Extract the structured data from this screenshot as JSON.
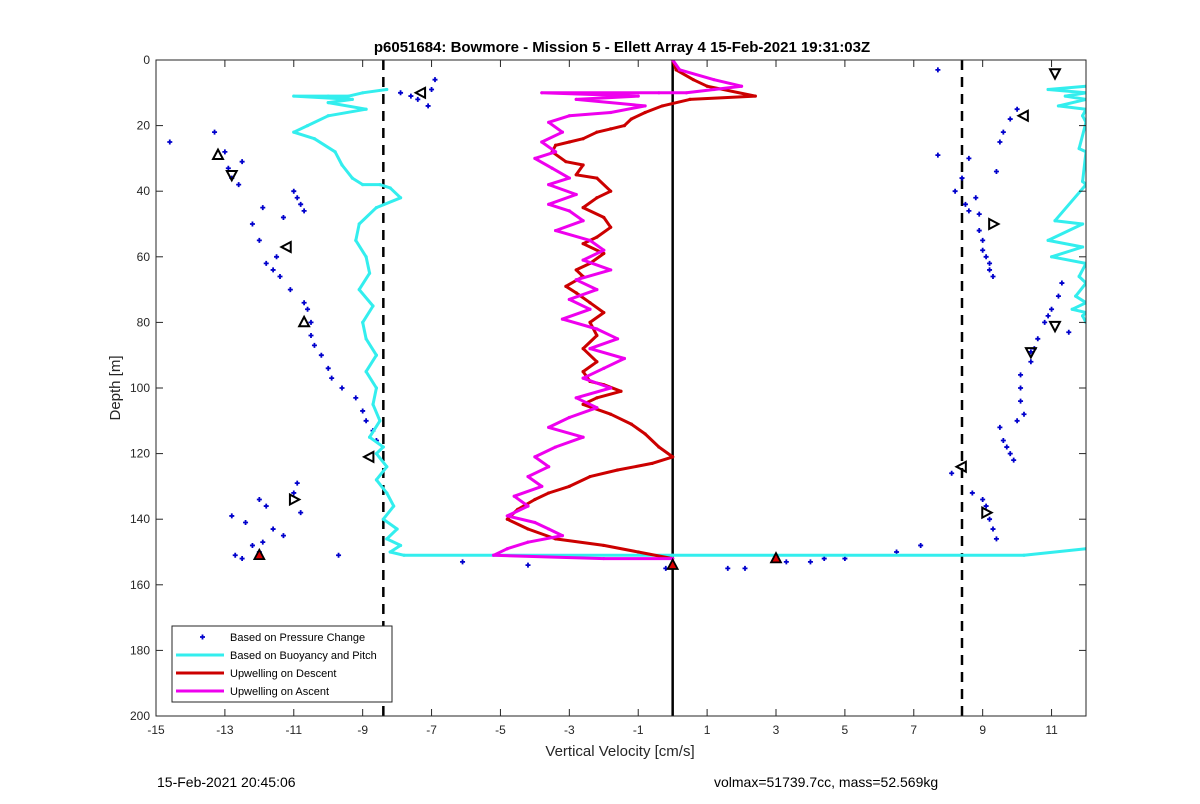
{
  "chart_data": {
    "type": "scatter",
    "title": "p6051684: Bowmore - Mission 5 - Ellett Array 4 15-Feb-2021 19:31:03Z",
    "xlabel": "Vertical Velocity [cm/s]",
    "ylabel": "Depth [m]",
    "xlim": [
      -15,
      12
    ],
    "ylim": [
      0,
      200
    ],
    "y_reversed": true,
    "xticks": [
      -15,
      -13,
      -11,
      -9,
      -7,
      -5,
      -3,
      -1,
      1,
      3,
      5,
      7,
      9,
      11
    ],
    "yticks": [
      0,
      20,
      40,
      60,
      80,
      100,
      120,
      140,
      160,
      180,
      200
    ],
    "grid": false,
    "legend_position": "bottom-left",
    "reference_lines": [
      {
        "x": -8.4,
        "style": "dashed",
        "color": "#000000"
      },
      {
        "x": 0,
        "style": "solid",
        "color": "#000000"
      },
      {
        "x": 8.4,
        "style": "dashed",
        "color": "#000000"
      }
    ],
    "series": [
      {
        "name": "Based on Pressure Change",
        "kind": "points",
        "color": "#0000cc",
        "x": [
          -14.6,
          -13.3,
          -13.0,
          -12.9,
          -12.8,
          -12.6,
          -12.5,
          -12.2,
          -12.0,
          -11.9,
          -11.8,
          -11.6,
          -11.5,
          -11.4,
          -11.3,
          -11.1,
          -11.0,
          -10.9,
          -10.8,
          -10.7,
          -10.7,
          -10.6,
          -10.5,
          -10.5,
          -10.4,
          -10.2,
          -10.0,
          -9.9,
          -9.6,
          -9.2,
          -9.0,
          -8.9,
          -8.7,
          -8.6,
          -7.9,
          -7.6,
          -7.4,
          -7.1,
          -7.0,
          -6.9,
          -9.7,
          -12.8,
          -12.4,
          -11.6,
          -11.3,
          -10.8,
          -11.0,
          -10.9,
          -11.9,
          -12.0,
          -12.2,
          -12.5,
          -12.7,
          -11.8,
          -12.0
        ],
        "y": [
          25,
          22,
          28,
          33,
          36,
          38,
          31,
          50,
          55,
          45,
          62,
          64,
          60,
          66,
          48,
          70,
          40,
          42,
          44,
          46,
          74,
          76,
          80,
          84,
          87,
          90,
          94,
          97,
          100,
          103,
          107,
          110,
          113,
          116,
          10,
          11,
          12,
          14,
          9,
          6,
          151,
          139,
          141,
          143,
          145,
          138,
          132,
          129,
          147,
          150,
          148,
          152,
          151,
          136,
          134
        ]
      },
      {
        "name": "Based on Pressure Change",
        "kind": "points",
        "color": "#0000cc",
        "x": [
          7.7,
          7.7,
          8.2,
          8.4,
          8.5,
          8.6,
          8.6,
          8.8,
          8.9,
          8.9,
          9.0,
          9.0,
          9.1,
          9.2,
          9.2,
          9.3,
          9.4,
          9.5,
          9.6,
          9.8,
          10.0,
          10.1,
          10.1,
          10.2,
          10.4,
          10.5,
          10.6,
          10.8,
          10.9,
          11.0,
          11.2,
          11.3,
          11.5,
          8.1,
          8.7,
          9.0,
          9.1,
          9.2,
          9.3,
          9.4,
          9.5,
          9.6,
          9.7,
          9.8,
          9.9,
          10.0,
          10.1,
          10.4
        ],
        "y": [
          3,
          29,
          40,
          36,
          44,
          46,
          30,
          42,
          47,
          52,
          55,
          58,
          60,
          62,
          64,
          66,
          34,
          25,
          22,
          18,
          15,
          100,
          104,
          108,
          92,
          88,
          85,
          80,
          78,
          76,
          72,
          68,
          83,
          126,
          132,
          134,
          136,
          140,
          143,
          146,
          112,
          116,
          118,
          120,
          122,
          110,
          96,
          89
        ]
      },
      {
        "name": "Based on Pressure Change",
        "kind": "points",
        "color": "#0000cc",
        "x": [
          -6.1,
          -4.2,
          -0.2,
          1.6,
          2.1,
          3.3,
          4.0,
          4.4,
          5.0,
          6.5,
          7.2
        ],
        "y": [
          153,
          154,
          155,
          155,
          155,
          153,
          153,
          152,
          152,
          150,
          148
        ]
      },
      {
        "name": "Based on Buoyancy and Pitch",
        "kind": "line",
        "color": "#33eeee",
        "x": [
          -8.3,
          -9.0,
          -9.4,
          -10.0,
          -11.0,
          -9.3,
          -10.0,
          -8.9,
          -10.0,
          -10.6,
          -11.0,
          -10.4,
          -9.8,
          -9.6,
          -9.3,
          -9.0,
          -8.5,
          -8.2,
          -7.9,
          -8.6,
          -9.1,
          -9.2,
          -8.9,
          -8.8,
          -9.1,
          -8.7,
          -9.0,
          -8.9,
          -8.6,
          -8.9,
          -8.6,
          -8.7,
          -8.5,
          -8.8,
          -8.4,
          -8.6,
          -8.3,
          -8.6,
          -8.3,
          -8.1,
          -8.4,
          -8.0,
          -8.3,
          -7.9,
          -8.2,
          -7.8,
          0,
          5,
          10.2,
          12
        ],
        "y": [
          9,
          10,
          11,
          11,
          11,
          12,
          13,
          15,
          17,
          20,
          22,
          24,
          28,
          32,
          36,
          38,
          38,
          39,
          42,
          45,
          50,
          55,
          60,
          65,
          70,
          75,
          80,
          85,
          90,
          95,
          100,
          105,
          110,
          115,
          118,
          120,
          124,
          128,
          132,
          136,
          140,
          143,
          146,
          148,
          150,
          151,
          151,
          151,
          151,
          149
        ]
      },
      {
        "name": "Based on Buoyancy and Pitch",
        "kind": "line",
        "color": "#33eeee",
        "x": [
          12.0,
          10.9,
          12.0,
          11.4,
          12.0,
          11.2,
          12.0,
          11.9,
          12.0,
          11.8,
          12.0,
          11.9,
          12.0,
          11.1,
          11.9,
          10.9,
          11.9,
          11.0,
          12.0,
          11.8,
          12.0,
          11.7,
          12.0,
          11.6,
          12.0,
          11.9,
          12.0
        ],
        "y": [
          8,
          9,
          10,
          11,
          12,
          14,
          15,
          17,
          19,
          27,
          28,
          37,
          38,
          49,
          50,
          55,
          57,
          60,
          62,
          66,
          68,
          72,
          74,
          76,
          77,
          78,
          80
        ]
      },
      {
        "name": "Upwelling on Descent",
        "kind": "line",
        "color": "#cc0000",
        "x": [
          0,
          0.1,
          0.6,
          1.0,
          2.4,
          0.5,
          -0.3,
          -0.8,
          -1.2,
          -1.4,
          -1.8,
          -2.2,
          -2.6,
          -3.0,
          -3.4,
          -3.5,
          -3.1,
          -2.6,
          -2.8,
          -2.2,
          -1.8,
          -2.2,
          -2.6,
          -2.0,
          -1.8,
          -2.2,
          -2.6,
          -2.0,
          -2.4,
          -2.8,
          -2.6,
          -3.1,
          -2.8,
          -2.4,
          -2.0,
          -2.4,
          -2.2,
          -2.6,
          -2.2,
          -2.6,
          -2.4,
          -2.0,
          -1.5,
          -2.2,
          -2.6,
          -1.8,
          -1.2,
          -0.8,
          -0.4,
          0,
          -0.6,
          -1.6,
          -2.4,
          -3.0,
          -3.6,
          -4.0,
          -4.5,
          -4.8,
          -4.2,
          -3.4,
          -2.0,
          -1.0,
          0
        ],
        "y": [
          0,
          3,
          6,
          8,
          11,
          12,
          14,
          16,
          18,
          20,
          21,
          22,
          24,
          25,
          26,
          28,
          31,
          32,
          35,
          36,
          40,
          42,
          45,
          48,
          51,
          54,
          56,
          59,
          62,
          64,
          66,
          69,
          71,
          74,
          77,
          80,
          84,
          88,
          92,
          95,
          98,
          99,
          101,
          103,
          105,
          108,
          111,
          114,
          118,
          121,
          123,
          125,
          127,
          130,
          132,
          134,
          137,
          140,
          143,
          146,
          148,
          150,
          152
        ]
      },
      {
        "name": "Upwelling on Ascent",
        "kind": "line",
        "color": "#ee00ee",
        "x": [
          0,
          0.2,
          1.2,
          2.0,
          1.2,
          0.4,
          -0.4,
          -3.8,
          -1.0,
          -2.8,
          -0.8,
          -1.8,
          -3.0,
          -3.6,
          -3.2,
          -3.8,
          -3.4,
          -4.0,
          -3.5,
          -3.0,
          -3.6,
          -2.8,
          -3.6,
          -3.0,
          -2.6,
          -3.4,
          -2.4,
          -2.0,
          -2.6,
          -1.8,
          -2.8,
          -2.2,
          -3.0,
          -2.4,
          -3.2,
          -2.2,
          -1.6,
          -2.4,
          -1.4,
          -2.0,
          -2.6,
          -1.8,
          -2.8,
          -2.2,
          -3.0,
          -3.6,
          -2.6,
          -3.4,
          -4.0,
          -3.6,
          -4.2,
          -3.8,
          -4.6,
          -4.2,
          -4.8,
          -4.0,
          -3.6,
          -3.2,
          -4.2,
          -4.8,
          -5.2,
          -2.0,
          0
        ],
        "y": [
          0,
          3,
          6,
          8,
          9,
          10,
          10,
          10,
          11,
          12,
          14,
          16,
          17,
          19,
          22,
          25,
          28,
          30,
          33,
          36,
          38,
          41,
          44,
          46,
          49,
          52,
          55,
          58,
          61,
          64,
          67,
          70,
          73,
          76,
          79,
          82,
          85,
          88,
          91,
          94,
          97,
          100,
          103,
          106,
          109,
          112,
          115,
          118,
          121,
          124,
          127,
          130,
          133,
          136,
          139,
          141,
          143,
          145,
          147,
          149,
          151,
          152,
          152
        ]
      }
    ],
    "markers": {
      "open_triangles": [
        {
          "x": -7.3,
          "y": 10,
          "dir": "left"
        },
        {
          "x": -13.2,
          "y": 29,
          "dir": "up"
        },
        {
          "x": -12.8,
          "y": 35,
          "dir": "down"
        },
        {
          "x": -11.2,
          "y": 57,
          "dir": "left"
        },
        {
          "x": -10.7,
          "y": 80,
          "dir": "up"
        },
        {
          "x": -8.8,
          "y": 121,
          "dir": "left"
        },
        {
          "x": -11.0,
          "y": 134,
          "dir": "right"
        },
        {
          "x": 11.1,
          "y": 4,
          "dir": "down"
        },
        {
          "x": 10.2,
          "y": 17,
          "dir": "left"
        },
        {
          "x": 9.3,
          "y": 50,
          "dir": "right"
        },
        {
          "x": 11.1,
          "y": 81,
          "dir": "down"
        },
        {
          "x": 10.4,
          "y": 89,
          "dir": "down"
        },
        {
          "x": 8.4,
          "y": 124,
          "dir": "left"
        },
        {
          "x": 9.1,
          "y": 138,
          "dir": "right"
        }
      ],
      "filled_triangles": [
        {
          "x": -12.0,
          "y": 151
        },
        {
          "x": 0,
          "y": 154
        },
        {
          "x": 3.0,
          "y": 152
        }
      ]
    }
  },
  "footer": {
    "timestamp": "15-Feb-2021 20:45:06",
    "info": "volmax=51739.7cc, mass=52.569kg"
  }
}
